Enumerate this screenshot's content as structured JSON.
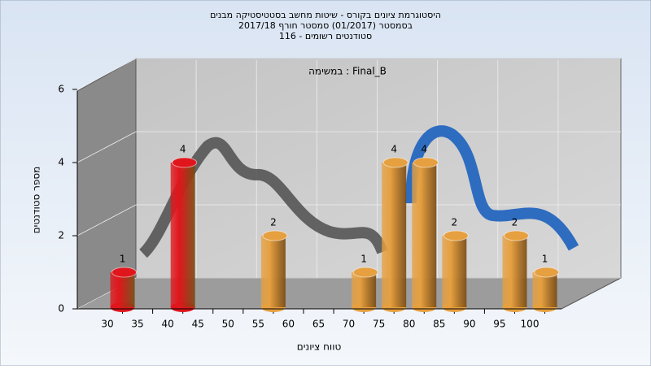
{
  "chart_data": {
    "type": "bar",
    "title": [
      "היסטוגרמת ציונים בקורס - שיטות מחשב בסטטיסטיקה מבנים",
      "בסמסטר  (01/2017)  סמסטר חורף 2017/18",
      "סטודנטים רשומים - 116"
    ],
    "annotation": "במשימה : Final_B",
    "x_label": "טווח ציונים",
    "y_label": "מספר סטודנטים",
    "x": [
      30,
      40,
      55,
      70,
      75,
      80,
      85,
      95,
      100
    ],
    "values": [
      1,
      4,
      2,
      1,
      4,
      4,
      2,
      2,
      1
    ],
    "colors": [
      "#e0161c",
      "#e0161c",
      "#e6a040",
      "#e6a040",
      "#e6a040",
      "#e6a040",
      "#e6a040",
      "#e6a040",
      "#e6a040"
    ],
    "xlim": [
      25,
      105
    ],
    "xticks": [
      30,
      35,
      40,
      45,
      50,
      55,
      60,
      65,
      70,
      75,
      80,
      85,
      90,
      95,
      100
    ],
    "ylim": [
      0,
      6
    ],
    "yticks": [
      0,
      2,
      4,
      6
    ],
    "grid": true
  }
}
